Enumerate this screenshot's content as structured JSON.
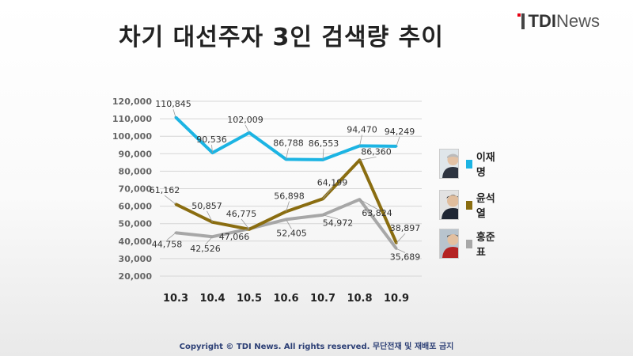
{
  "title": "차기 대선주자 3인 검색량 추이",
  "brand": {
    "name_bold": "TDI",
    "name_rest": "News"
  },
  "copyright": "Copyright © TDI News. All rights reserved. 무단전재 및 재배포 금지",
  "chart_data": {
    "type": "line",
    "title": "차기 대선주자 3인 검색량 추이",
    "categories": [
      "10.3",
      "10.4",
      "10.5",
      "10.6",
      "10.7",
      "10.8",
      "10.9"
    ],
    "ylim": [
      20000,
      120000
    ],
    "yticks": [
      "20,000",
      "30,000",
      "40,000",
      "50,000",
      "60,000",
      "70,000",
      "80,000",
      "90,000",
      "100,000",
      "110,000",
      "120,000"
    ],
    "grid": true,
    "legend_position": "right",
    "series": [
      {
        "name": "이재명",
        "color": "#1cb4e3",
        "values": [
          110845,
          90536,
          102009,
          86788,
          86553,
          94470,
          94249
        ],
        "labels": [
          "110,845",
          "90,536",
          "102,009",
          "86,788",
          "86,553",
          "94,470",
          "94,249"
        ]
      },
      {
        "name": "윤석열",
        "color": "#8a6d10",
        "values": [
          61162,
          50857,
          46775,
          56898,
          64199,
          86360,
          38897
        ],
        "labels": [
          "61,162",
          "50,857",
          "46,775",
          "56,898",
          "64,199",
          "86,360",
          "38,897"
        ]
      },
      {
        "name": "홍준표",
        "color": "#a7a7a7",
        "values": [
          44758,
          42526,
          47066,
          52405,
          54972,
          63824,
          35689
        ],
        "labels": [
          "44,758",
          "42,526",
          "47,066",
          "52,405",
          "54,972",
          "63,824",
          "35,689"
        ]
      }
    ]
  }
}
